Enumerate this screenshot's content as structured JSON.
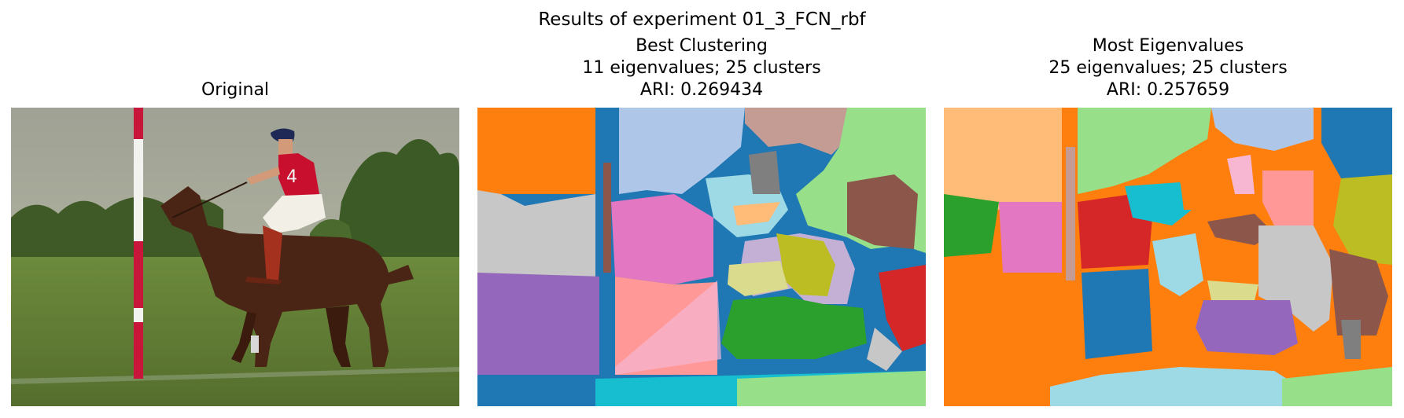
{
  "figure": {
    "suptitle": "Results of experiment 01_3_FCN_rbf"
  },
  "panels": [
    {
      "title_lines": [
        "Original"
      ],
      "image": "photo of polo player on horse next to red-and-white pole on grass field"
    },
    {
      "title_lines": [
        "Best Clustering",
        "11 eigenvalues; 25 clusters",
        "ARI: 0.269434"
      ],
      "image": "segmentation map"
    },
    {
      "title_lines": [
        "Most Eigenvalues",
        "25 eigenvalues; 25 clusters",
        "ARI: 0.257659"
      ],
      "image": "segmentation map"
    }
  ],
  "colors": {
    "tab_blue": "#1f77b4",
    "tab_lightblue": "#aec7e8",
    "tab_orange": "#ff7f0e",
    "tab_lightorange": "#ffbb78",
    "tab_green": "#2ca02c",
    "tab_lightgreen": "#98df8a",
    "tab_red": "#d62728",
    "tab_pink": "#ff9896",
    "tab_purple": "#9467bd",
    "tab_lavender": "#c5b0d5",
    "tab_brown": "#8c564b",
    "tab_tan": "#c49c94",
    "tab_magenta": "#e377c2",
    "tab_lightmagenta": "#f7b6d2",
    "tab_gray": "#7f7f7f",
    "tab_lightgray": "#c7c7c7",
    "tab_olive": "#bcbd22",
    "tab_khaki": "#dbdb8d",
    "tab_cyan": "#17becf",
    "tab_lightcyan": "#9edae5"
  }
}
